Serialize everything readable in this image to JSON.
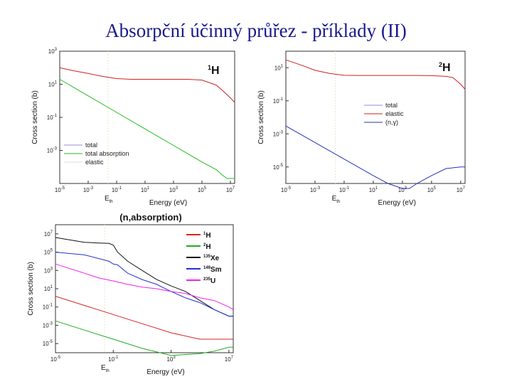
{
  "page": {
    "title": "Absorpční účinný průřez - příklady (II)"
  },
  "chart_data": [
    {
      "type": "line",
      "corner_label": {
        "mass": "1",
        "element": "H"
      },
      "xlabel": "Energy (eV)",
      "xmarker": "E",
      "xmarker_sub": "th",
      "ylabel": "Cross section (b)",
      "xscale": "log",
      "yscale": "log",
      "xlim": [
        1e-05,
        20000000.0
      ],
      "ylim": [
        1e-05,
        1000.0
      ],
      "xticks": [
        {
          "m": "10",
          "e": "-5"
        },
        {
          "m": "10",
          "e": "-3"
        },
        {
          "m": "10",
          "e": "-1"
        },
        {
          "m": "10",
          "e": "1"
        },
        {
          "m": "10",
          "e": "3"
        },
        {
          "m": "10",
          "e": "5"
        },
        {
          "m": "10",
          "e": "7"
        }
      ],
      "yticks": [
        {
          "m": "10",
          "e": "-3"
        },
        {
          "m": "10",
          "e": "-1"
        },
        {
          "m": "10",
          "e": "1"
        },
        {
          "m": "10",
          "e": "3"
        }
      ],
      "legend_position": "bottom-left",
      "series": [
        {
          "name": "total",
          "color": "#8c8ce0",
          "points": []
        },
        {
          "name": "total absorption",
          "color": "#22bb22",
          "points": [
            [
              1e-05,
              20
            ],
            [
              0.001,
              2
            ],
            [
              0.1,
              0.2
            ],
            [
              10,
              0.02
            ],
            [
              1000,
              0.002
            ],
            [
              100000.0,
              0.0002
            ],
            [
              1000000.0,
              7e-05
            ],
            [
              3000000.0,
              3e-05
            ],
            [
              6000000.0,
              2e-05
            ],
            [
              20000000.0,
              2e-05
            ]
          ]
        },
        {
          "name": "elastic",
          "color": "#dddddd",
          "points": []
        },
        {
          "name": "",
          "color": "#cc2222",
          "points": [
            [
              1e-05,
              100
            ],
            [
              0.0001,
              65
            ],
            [
              0.001,
              45
            ],
            [
              0.01,
              30
            ],
            [
              0.1,
              22
            ],
            [
              1,
              20
            ],
            [
              10,
              20
            ],
            [
              100,
              20
            ],
            [
              1000,
              20
            ],
            [
              10000.0,
              20
            ],
            [
              100000.0,
              18
            ],
            [
              1000000.0,
              9
            ],
            [
              3000000.0,
              4
            ],
            [
              10000000.0,
              1.5
            ],
            [
              20000000.0,
              0.8
            ]
          ]
        }
      ]
    },
    {
      "type": "line",
      "corner_label": {
        "mass": "2",
        "element": "H"
      },
      "xlabel": "Energy (eV)",
      "xmarker": "E",
      "xmarker_sub": "th",
      "ylabel": "Cross section (b)",
      "xscale": "log",
      "yscale": "log",
      "xlim": [
        1e-05,
        20000000.0
      ],
      "ylim": [
        1e-06,
        100.0
      ],
      "xticks": [
        {
          "m": "10",
          "e": "-5"
        },
        {
          "m": "10",
          "e": "-3"
        },
        {
          "m": "10",
          "e": "-1"
        },
        {
          "m": "10",
          "e": "1"
        },
        {
          "m": "10",
          "e": "3"
        },
        {
          "m": "10",
          "e": "5"
        },
        {
          "m": "10",
          "e": "7"
        }
      ],
      "yticks": [
        {
          "m": "10",
          "e": "-5"
        },
        {
          "m": "10",
          "e": "-3"
        },
        {
          "m": "10",
          "e": "-1"
        },
        {
          "m": "10",
          "e": "1"
        }
      ],
      "legend_position": "right",
      "series": [
        {
          "name": "total",
          "color": "#8c8ce0",
          "points": []
        },
        {
          "name": "elastic",
          "color": "#cc2222",
          "points": [
            [
              1e-05,
              30
            ],
            [
              0.0001,
              15
            ],
            [
              0.001,
              7
            ],
            [
              0.01,
              4.5
            ],
            [
              0.1,
              3.5
            ],
            [
              1,
              3.4
            ],
            [
              10,
              3.4
            ],
            [
              100,
              3.4
            ],
            [
              1000,
              3.4
            ],
            [
              10000.0,
              3.4
            ],
            [
              100000.0,
              3.3
            ],
            [
              1000000.0,
              3
            ],
            [
              3000000.0,
              2.5
            ],
            [
              10000000.0,
              1
            ],
            [
              20000000.0,
              0.5
            ]
          ]
        },
        {
          "name": "(n,γ)",
          "color": "#2233bb",
          "points": [
            [
              1e-05,
              0.003
            ],
            [
              0.001,
              0.0003
            ],
            [
              0.1,
              3e-05
            ],
            [
              10,
              3e-06
            ],
            [
              100,
              1e-06
            ],
            [
              1000,
              5e-07
            ],
            [
              3000,
              5e-07
            ],
            [
              10000.0,
              1e-06
            ],
            [
              100000.0,
              3e-06
            ],
            [
              1000000.0,
              8e-06
            ],
            [
              10000000.0,
              1e-05
            ],
            [
              20000000.0,
              1e-05
            ]
          ]
        }
      ]
    },
    {
      "type": "line",
      "title": "(n,absorption)",
      "xlabel": "Energy (eV)",
      "xmarker": "E",
      "xmarker_sub": "th",
      "ylabel": "Cross section (b)",
      "xscale": "log",
      "yscale": "log",
      "xlim": [
        1e-05,
        20000000.0
      ],
      "ylim": [
        1e-06,
        100000000.0
      ],
      "xticks": [
        {
          "m": "10",
          "e": "-5"
        },
        {
          "m": "10",
          "e": "-1"
        },
        {
          "m": "10",
          "e": "3"
        },
        {
          "m": "10",
          "e": "7"
        }
      ],
      "yticks": [
        {
          "m": "10",
          "e": "-5"
        },
        {
          "m": "10",
          "e": "-3"
        },
        {
          "m": "10",
          "e": "-1"
        },
        {
          "m": "10",
          "e": "1"
        },
        {
          "m": "10",
          "e": "3"
        },
        {
          "m": "10",
          "e": "5"
        },
        {
          "m": "10",
          "e": "7"
        }
      ],
      "legend_position": "right",
      "series": [
        {
          "name": "1H",
          "mass": "1",
          "element": "H",
          "color": "#dd2222",
          "points": [
            [
              1e-05,
              1.5
            ],
            [
              0.001,
              0.15
            ],
            [
              0.1,
              0.015
            ],
            [
              10,
              0.0015
            ],
            [
              1000,
              0.00015
            ],
            [
              100000.0,
              3e-05
            ],
            [
              1000000.0,
              3e-05
            ],
            [
              10000000.0,
              3e-05
            ],
            [
              20000000.0,
              3e-05
            ]
          ]
        },
        {
          "name": "2H",
          "mass": "2",
          "element": "H",
          "color": "#22aa22",
          "points": [
            [
              1e-05,
              0.003
            ],
            [
              0.001,
              0.0003
            ],
            [
              0.1,
              3e-05
            ],
            [
              10,
              3e-06
            ],
            [
              1000,
              5e-07
            ],
            [
              100000.0,
              8e-07
            ],
            [
              1000000.0,
              1.5e-06
            ],
            [
              10000000.0,
              4e-06
            ],
            [
              20000000.0,
              4e-06
            ]
          ]
        },
        {
          "name": "135Xe",
          "mass": "135",
          "element": "Xe",
          "color": "#111111",
          "points": [
            [
              1e-05,
              4000000
            ],
            [
              0.001,
              1200000
            ],
            [
              0.01,
              1000000
            ],
            [
              0.05,
              900000
            ],
            [
              0.1,
              600000
            ],
            [
              0.2,
              100000
            ],
            [
              1,
              10000
            ],
            [
              10,
              1000
            ],
            [
              100,
              100
            ],
            [
              1000,
              20
            ],
            [
              10000.0,
              5
            ],
            [
              100000.0,
              0.5
            ],
            [
              1000000.0,
              0.05
            ],
            [
              10000000.0,
              0.01
            ],
            [
              20000000.0,
              0.01
            ]
          ]
        },
        {
          "name": "149Sm",
          "mass": "149",
          "element": "Sm",
          "color": "#2233cc",
          "points": [
            [
              1e-05,
              100000
            ],
            [
              0.001,
              50000
            ],
            [
              0.01,
              20000
            ],
            [
              0.05,
              10000
            ],
            [
              0.1,
              5000
            ],
            [
              0.2,
              4000
            ],
            [
              1,
              500
            ],
            [
              10,
              100
            ],
            [
              100,
              30
            ],
            [
              1000,
              5
            ],
            [
              10000.0,
              1
            ],
            [
              100000.0,
              0.3
            ],
            [
              1000000.0,
              0.05
            ],
            [
              10000000.0,
              0.01
            ],
            [
              20000000.0,
              0.01
            ]
          ]
        },
        {
          "name": "235U",
          "mass": "235",
          "element": "U",
          "color": "#ee22ee",
          "points": [
            [
              1e-05,
              5000
            ],
            [
              0.001,
              500
            ],
            [
              0.01,
              150
            ],
            [
              0.1,
              70
            ],
            [
              1,
              30
            ],
            [
              10,
              15
            ],
            [
              100,
              10
            ],
            [
              1000,
              5
            ],
            [
              10000.0,
              3
            ],
            [
              100000.0,
              1
            ],
            [
              1000000.0,
              0.5
            ],
            [
              10000000.0,
              0.1
            ],
            [
              20000000.0,
              0.05
            ]
          ]
        }
      ]
    }
  ]
}
